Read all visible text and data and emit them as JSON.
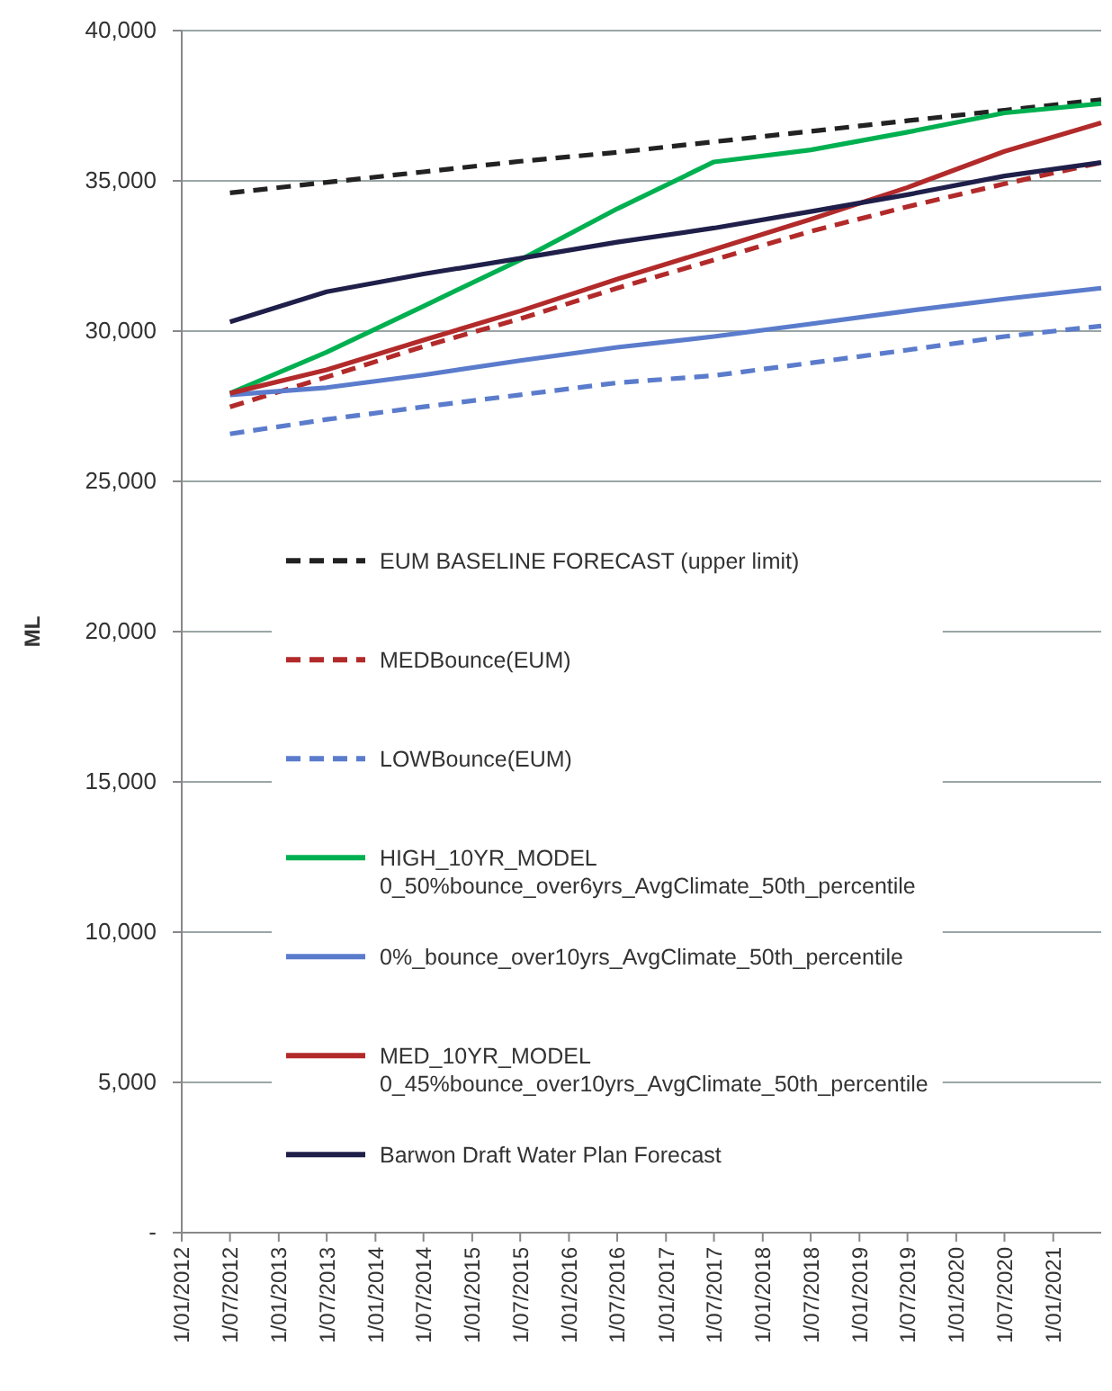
{
  "chart_data": {
    "type": "line",
    "ylabel": "ML",
    "x": [
      "2012-07-01",
      "2013-07-01",
      "2014-07-01",
      "2015-07-01",
      "2016-07-01",
      "2017-07-01",
      "2018-07-01",
      "2019-07-01",
      "2020-07-01",
      "2021-07-01"
    ],
    "xlim": [
      "2012-01-01",
      "2021-07-01"
    ],
    "xticks": [
      {
        "value": "2012-01-01",
        "label": "1/01/2012"
      },
      {
        "value": "2012-07-01",
        "label": "1/07/2012"
      },
      {
        "value": "2013-01-01",
        "label": "1/01/2013"
      },
      {
        "value": "2013-07-01",
        "label": "1/07/2013"
      },
      {
        "value": "2014-01-01",
        "label": "1/01/2014"
      },
      {
        "value": "2014-07-01",
        "label": "1/07/2014"
      },
      {
        "value": "2015-01-01",
        "label": "1/01/2015"
      },
      {
        "value": "2015-07-01",
        "label": "1/07/2015"
      },
      {
        "value": "2016-01-01",
        "label": "1/01/2016"
      },
      {
        "value": "2016-07-01",
        "label": "1/07/2016"
      },
      {
        "value": "2017-01-01",
        "label": "1/01/2017"
      },
      {
        "value": "2017-07-01",
        "label": "1/07/2017"
      },
      {
        "value": "2018-01-01",
        "label": "1/01/2018"
      },
      {
        "value": "2018-07-01",
        "label": "1/07/2018"
      },
      {
        "value": "2019-01-01",
        "label": "1/01/2019"
      },
      {
        "value": "2019-07-01",
        "label": "1/07/2019"
      },
      {
        "value": "2020-01-01",
        "label": "1/01/2020"
      },
      {
        "value": "2020-07-01",
        "label": "1/07/2020"
      },
      {
        "value": "2021-01-01",
        "label": "1/01/2021"
      }
    ],
    "ylim": [
      0,
      40000
    ],
    "yticks": [
      {
        "value": 0,
        "label": "-"
      },
      {
        "value": 5000,
        "label": "5,000"
      },
      {
        "value": 10000,
        "label": "10,000"
      },
      {
        "value": 15000,
        "label": "15,000"
      },
      {
        "value": 20000,
        "label": "20,000"
      },
      {
        "value": 25000,
        "label": "25,000"
      },
      {
        "value": 30000,
        "label": "30,000"
      },
      {
        "value": 35000,
        "label": "35,000"
      },
      {
        "value": 40000,
        "label": "40,000"
      }
    ],
    "grid": "y",
    "legend": "bottom left",
    "marker": "none",
    "series": [
      {
        "name": "EUM BASELINE FORECAST (upper limit)",
        "color": "#222222",
        "line_style": "dashed",
        "values": [
          34600,
          34950,
          35300,
          35650,
          35950,
          36300,
          36650,
          37000,
          37350,
          37700
        ]
      },
      {
        "name": "MEDBounce(EUM)",
        "color": "#b22a2a",
        "line_style": "dashed",
        "values": [
          27480,
          28470,
          29490,
          30410,
          31430,
          32370,
          33320,
          34140,
          34900,
          35610
        ]
      },
      {
        "name": "LOWBounce(EUM)",
        "color": "#5b7ccc",
        "line_style": "dashed",
        "values": [
          26580,
          27060,
          27480,
          27880,
          28280,
          28520,
          28940,
          29370,
          29820,
          30170
        ]
      },
      {
        "name": "HIGH_10YR_MODEL 0_50%bounce_over6yrs_AvgClimate_50th_percentile",
        "color": "#00b050",
        "line_style": "solid",
        "values": [
          27930,
          29300,
          30830,
          32370,
          34070,
          35630,
          36030,
          36620,
          37260,
          37570
        ]
      },
      {
        "name": "0%_bounce_over10yrs_AvgClimate_50th_percentile",
        "color": "#5b7ccc",
        "line_style": "solid",
        "values": [
          27880,
          28120,
          28540,
          29020,
          29460,
          29820,
          30240,
          30670,
          31070,
          31430
        ]
      },
      {
        "name": "MED_10YR_MODEL 0_45%bounce_over10yrs_AvgClimate_50th_percentile",
        "color": "#b22a2a",
        "line_style": "solid",
        "values": [
          27930,
          28710,
          29700,
          30670,
          31730,
          32720,
          33720,
          34780,
          35980,
          36930
        ]
      },
      {
        "name": "Barwon Draft Water Plan Forecast",
        "color": "#1f1f4a",
        "line_style": "solid",
        "values": [
          30310,
          31310,
          31900,
          32420,
          32960,
          33430,
          33980,
          34540,
          35160,
          35610
        ]
      }
    ]
  }
}
